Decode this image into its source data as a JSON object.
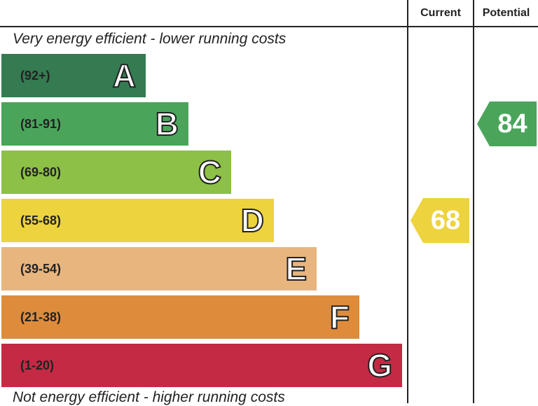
{
  "header": {
    "current_label": "Current",
    "potential_label": "Potential"
  },
  "captions": {
    "top": "Very energy efficient - lower running costs",
    "bottom": "Not energy efficient - higher running costs"
  },
  "chart_data": {
    "type": "bar",
    "categories": [
      "A",
      "B",
      "C",
      "D",
      "E",
      "F",
      "G"
    ],
    "ranges": [
      "(92+)",
      "(81-91)",
      "(69-80)",
      "(55-68)",
      "(39-54)",
      "(21-38)",
      "(1-20)"
    ],
    "range_min": [
      92,
      81,
      69,
      55,
      39,
      21,
      1
    ],
    "colors": [
      "#347b51",
      "#4aa55b",
      "#8dc046",
      "#edd33d",
      "#e8b57e",
      "#de8c3b",
      "#c42a44"
    ],
    "current": {
      "value": 68,
      "band": "D",
      "color": "#edd33d"
    },
    "potential": {
      "value": 84,
      "band": "B",
      "color": "#4aa55b"
    }
  }
}
